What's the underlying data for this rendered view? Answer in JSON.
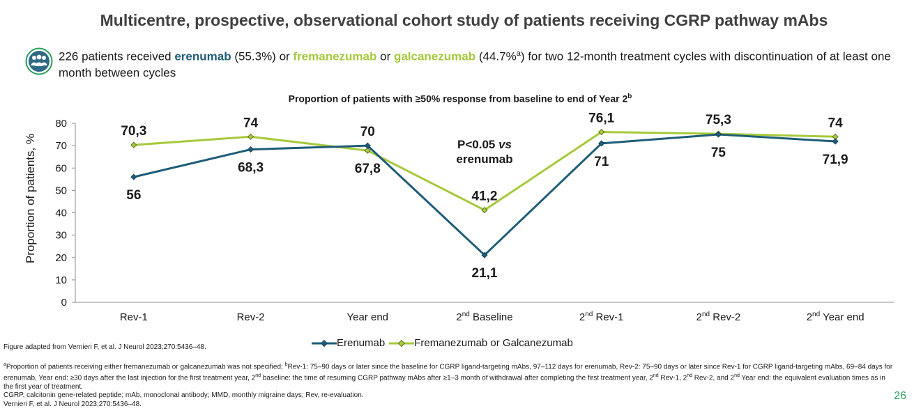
{
  "title": "Multicentre, prospective, observational cohort study of patients receiving CGRP pathway mAbs",
  "intro": {
    "icon": "people-group-icon",
    "prefix": "226 patients received ",
    "erenumab": "erenumab",
    "erenumab_pct": " (55.3%) or ",
    "fremanezumab": "fremanezumab",
    "or": " or ",
    "galcanezumab": "galcanezumab",
    "galcanezumab_pct": " (44.7%",
    "sup_a": "a",
    "suffix": ") for two 12-month treatment cycles with discontinuation of at least one month between cycles",
    "colors": {
      "erenumab": "#1e5d78",
      "fremanezumab": "#a6c93c",
      "icon": "#2e6a83",
      "icon_ring": "#2aa05a"
    }
  },
  "chart_data": {
    "type": "line",
    "title": "Proportion of patients with ≥50% response from baseline to end of Year 2",
    "title_sup": "b",
    "ylabel": "Proportion of patients, %",
    "ylim": [
      0,
      80
    ],
    "yticks": [
      "0",
      "10",
      "20",
      "30",
      "40",
      "50",
      "60",
      "70",
      "80"
    ],
    "categories": [
      {
        "pre": "",
        "sup": "",
        "post": "Rev-1"
      },
      {
        "pre": "",
        "sup": "",
        "post": "Rev-2"
      },
      {
        "pre": "",
        "sup": "",
        "post": "Year end"
      },
      {
        "pre": "2",
        "sup": "nd",
        "post": " Baseline"
      },
      {
        "pre": "2",
        "sup": "nd",
        "post": " Rev-1"
      },
      {
        "pre": "2",
        "sup": "nd",
        "post": " Rev-2"
      },
      {
        "pre": "2",
        "sup": "nd",
        "post": " Year end"
      }
    ],
    "series": [
      {
        "name": "Erenumab",
        "color": "#1e5d78",
        "values": [
          56,
          68.3,
          70,
          21.1,
          71,
          75,
          71.9
        ],
        "labels": [
          "56",
          "68,3",
          "70",
          "21,1",
          "71",
          "75",
          "71,9"
        ],
        "label_pos": [
          "below",
          "below",
          "above",
          "below",
          "below",
          "below",
          "below"
        ]
      },
      {
        "name": "Fremanezumab or Galcanezumab",
        "color": "#a6c93c",
        "values": [
          70.3,
          74,
          67.8,
          41.2,
          76.1,
          75.3,
          74
        ],
        "labels": [
          "70,3",
          "74",
          "67,8",
          "41,2",
          "76,1",
          "75,3",
          "74"
        ],
        "label_pos": [
          "above",
          "above",
          "below",
          "above",
          "above",
          "above",
          "above"
        ]
      }
    ],
    "annotation": {
      "line1_pre": "P<0.05 ",
      "line1_em": "vs",
      "line2": "erenumab"
    },
    "legend": "bottom-center",
    "grid": false
  },
  "source": "Figure adapted from Vernieri F, et al. J Neurol 2023;270:5436–48.",
  "footnotes": {
    "a_sup": "a",
    "a_text": "Proportion of patients receiving either fremanezumab or galcanezumab was not specified; ",
    "b_sup": "b",
    "b_text": "Rev-1: 75–90 days or later since the baseline for CGRP ligand-targeting mAbs, 97–112 days for erenumab, Rev-2: 75–90 days or later since Rev-1 for CGRP ligand-targeting mAbs, 69–84 days for erenumab, Year end: ≥30 days after the last injection for the first treatment year, 2",
    "b_sup2": "nd",
    "b_text2": " baseline: the time of resuming CGRP pathway mAbs after ≥1–3 month of withdrawal after completing the first treatment year, 2",
    "b_sup3": "nd",
    "b_text3": " Rev-1, 2",
    "b_sup4": "nd",
    "b_text4": " Rev-2, and 2",
    "b_sup5": "nd",
    "b_text5": " Year end: the equivalent evaluation times as in the first year of treatment.",
    "abbrev": "CGRP, calcitonin gene-related peptide; mAb, monoclonal antibody; MMD, monthly migraine days; Rev, re-evaluation.",
    "ref": "Vernieri F, et al. J Neurol 2023;270:5436–48."
  },
  "page_number": "26"
}
